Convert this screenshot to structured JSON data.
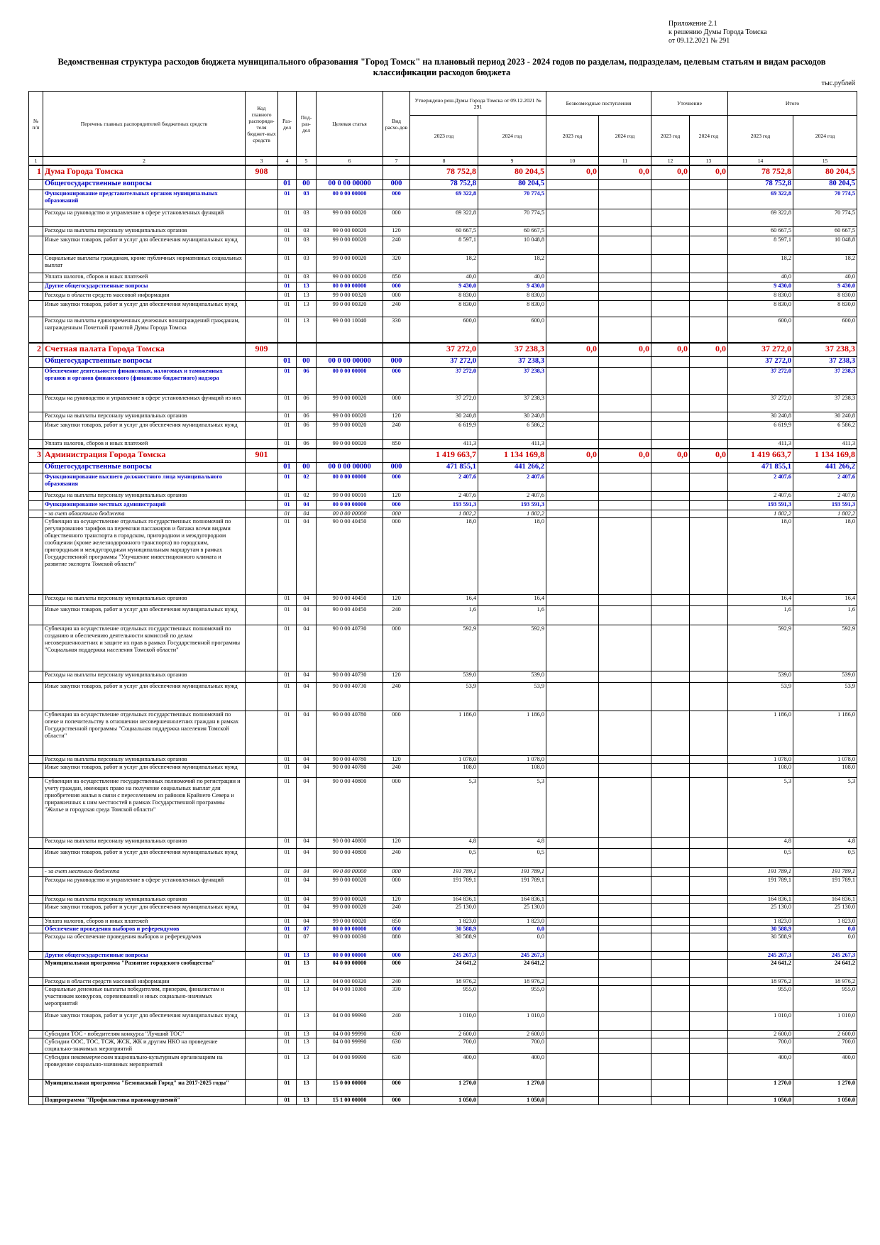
{
  "annex": {
    "line1": "Приложение 2.1",
    "line2": "к решению Думы Города Томска",
    "line3": "от 09.12.2021 № 291"
  },
  "title": "Ведомственная структура расходов бюджета муниципального образования \"Город Томск\" на плановый период 2023 - 2024 годов по разделам, подразделам, целевым статьям и видам расходов классификации расходов бюджета",
  "units": "тыс.рублей",
  "header": {
    "num": "№ п/п",
    "name": "Перечень главных распорядителей бюджетных средств",
    "code": "Код главного распоряди-теля бюджет-ных средств",
    "razdel": "Раз-дел",
    "podrazdel": "Под-раз-дел",
    "csr": "Целевая статья",
    "vr": "Вид расхо-дов",
    "approved": "Утверждено реш.Думы Города Томска от 09.12.2021 № 291",
    "gratuitous": "Безвозмездные поступления",
    "clarification": "Уточнение",
    "total": "Итого",
    "y2023": "2023 год",
    "y2024": "2024 год"
  },
  "colnums": [
    "1",
    "2",
    "3",
    "4",
    "5",
    "6",
    "7",
    "8",
    "9",
    "10",
    "11",
    "12",
    "13",
    "14",
    "15"
  ],
  "rows": [
    {
      "t": "dept",
      "n": "1",
      "name": "Дума Города Томска",
      "code": "908",
      "a23": "78 752,8",
      "a24": "80 204,5",
      "b23": "0,0",
      "b24": "0,0",
      "c23": "0,0",
      "c24": "0,0",
      "s23": "78 752,8",
      "s24": "80 204,5",
      "h": 18
    },
    {
      "t": "sec",
      "name": "Общегосударственные вопросы",
      "rz": "01",
      "pr": "00",
      "csr": "00 0 00 00000",
      "vr": "000",
      "a23": "78 752,8",
      "a24": "80 204,5",
      "s23": "78 752,8",
      "s24": "80 204,5",
      "h": 15
    },
    {
      "t": "sub",
      "name": "Функционирование представительных органов муниципальных образований",
      "rz": "01",
      "pr": "03",
      "csr": "00 0 00 00000",
      "vr": "000",
      "a23": "69 322,8",
      "a24": "70 774,5",
      "s23": "69 322,8",
      "s24": "70 774,5",
      "h": 27
    },
    {
      "t": "norm",
      "name": "Расходы на руководство и управление в сфере установленных функций",
      "rz": "01",
      "pr": "03",
      "csr": "99 0 00 00020",
      "vr": "000",
      "a23": "69 322,8",
      "a24": "70 774,5",
      "s23": "69 322,8",
      "s24": "70 774,5",
      "h": 25
    },
    {
      "t": "norm",
      "name": "Расходы на выплаты персоналу муниципальных органов",
      "rz": "01",
      "pr": "03",
      "csr": "99 0 00 00020",
      "vr": "120",
      "a23": "60 667,5",
      "a24": "60 667,5",
      "s23": "60 667,5",
      "s24": "60 667,5",
      "h": 13
    },
    {
      "t": "norm",
      "name": "Иные закупки товаров, работ и услуг для обеспечения муниципальных нужд",
      "rz": "01",
      "pr": "03",
      "csr": "99 0 00 00020",
      "vr": "240",
      "a23": "8 597,1",
      "a24": "10 048,8",
      "s23": "8 597,1",
      "s24": "10 048,8",
      "h": 26
    },
    {
      "t": "norm",
      "name": "Социальные выплаты гражданам, кроме публичных нормативных социальных выплат",
      "rz": "01",
      "pr": "03",
      "csr": "99 0 00 00020",
      "vr": "320",
      "a23": "18,2",
      "a24": "18,2",
      "s23": "18,2",
      "s24": "18,2",
      "h": 26
    },
    {
      "t": "norm",
      "name": "Уплата налогов, сборов и иных платежей",
      "rz": "01",
      "pr": "03",
      "csr": "99 0 00 00020",
      "vr": "850",
      "a23": "40,0",
      "a24": "40,0",
      "s23": "40,0",
      "s24": "40,0",
      "h": 13
    },
    {
      "t": "sub",
      "name": "Другие общегосударственные вопросы",
      "rz": "01",
      "pr": "13",
      "csr": "00 0 00 00000",
      "vr": "000",
      "a23": "9 430,0",
      "a24": "9 430,0",
      "s23": "9 430,0",
      "s24": "9 430,0",
      "h": 13
    },
    {
      "t": "norm",
      "name": "Расходы в области средств массовой информации",
      "rz": "01",
      "pr": "13",
      "csr": "99 0 00 00320",
      "vr": "000",
      "a23": "8 830,0",
      "a24": "8 830,0",
      "s23": "8 830,0",
      "s24": "8 830,0",
      "h": 13
    },
    {
      "t": "norm",
      "name": "Иные закупки товаров, работ и услуг для обеспечения муниципальных нужд",
      "rz": "01",
      "pr": "13",
      "csr": "99 0 00 00320",
      "vr": "240",
      "a23": "8 830,0",
      "a24": "8 830,0",
      "s23": "8 830,0",
      "s24": "8 830,0",
      "h": 23
    },
    {
      "t": "norm",
      "name": "Расходы на выплаты единовременных денежных вознаграждений гражданам, награжденным Почетной грамотой Думы Города Томска",
      "rz": "01",
      "pr": "13",
      "csr": "99 0 00 10040",
      "vr": "330",
      "a23": "600,0",
      "a24": "600,0",
      "s23": "600,0",
      "s24": "600,0",
      "h": 36
    },
    {
      "t": "dept",
      "n": "2",
      "name": "Счетная палата Города Томска",
      "code": "909",
      "a23": "37 272,0",
      "a24": "37 238,3",
      "b23": "0,0",
      "b24": "0,0",
      "c23": "0,0",
      "c24": "0,0",
      "s23": "37 272,0",
      "s24": "37 238,3",
      "h": 18
    },
    {
      "t": "sec",
      "name": "Общегосударственные вопросы",
      "rz": "01",
      "pr": "00",
      "csr": "00 0 00 00000",
      "vr": "000",
      "a23": "37 272,0",
      "a24": "37 238,3",
      "s23": "37 272,0",
      "s24": "37 238,3",
      "h": 15
    },
    {
      "t": "sub",
      "name": "Обеспечение деятельности финансовых, налоговых и таможенных органов и органов финансового (финансово-бюджетного) надзора",
      "rz": "01",
      "pr": "06",
      "csr": "00 0 00 00000",
      "vr": "000",
      "a23": "37 272,0",
      "a24": "37 238,3",
      "s23": "37 272,0",
      "s24": "37 238,3",
      "h": 38
    },
    {
      "t": "norm",
      "name": "Расходы на руководство и управление в сфере установленных функций из них",
      "rz": "01",
      "pr": "06",
      "csr": "99 0 00 00020",
      "vr": "000",
      "a23": "37 272,0",
      "a24": "37 238,3",
      "s23": "37 272,0",
      "s24": "37 238,3",
      "h": 25
    },
    {
      "t": "norm",
      "name": "Расходы на выплаты персоналу муниципальных органов",
      "rz": "01",
      "pr": "06",
      "csr": "99 0 00 00020",
      "vr": "120",
      "a23": "30 240,8",
      "a24": "30 240,8",
      "s23": "30 240,8",
      "s24": "30 240,8",
      "h": 13
    },
    {
      "t": "norm",
      "name": "Иные закупки товаров, работ и услуг для обеспечения муниципальных нужд",
      "rz": "01",
      "pr": "06",
      "csr": "99 0 00 00020",
      "vr": "240",
      "a23": "6 619,9",
      "a24": "6 586,2",
      "s23": "6 619,9",
      "s24": "6 586,2",
      "h": 26
    },
    {
      "t": "norm",
      "name": "Уплата налогов, сборов и иных платежей",
      "rz": "01",
      "pr": "06",
      "csr": "99 0 00 00020",
      "vr": "850",
      "a23": "411,3",
      "a24": "411,3",
      "s23": "411,3",
      "s24": "411,3",
      "h": 13
    },
    {
      "t": "dept",
      "n": "3",
      "name": "Администрация Города Томска",
      "code": "901",
      "a23": "1 419 663,7",
      "a24": "1 134 169,8",
      "b23": "0,0",
      "b24": "0,0",
      "c23": "0,0",
      "c24": "0,0",
      "s23": "1 419 663,7",
      "s24": "1 134 169,8",
      "h": 18
    },
    {
      "t": "sec",
      "name": "Общегосударственные вопросы",
      "rz": "01",
      "pr": "00",
      "csr": "00 0 00 00000",
      "vr": "000",
      "a23": "471 855,1",
      "a24": "441 266,2",
      "s23": "471 855,1",
      "s24": "441 266,2",
      "h": 15
    },
    {
      "t": "sub",
      "name": "Функционирование высшего должностного лица муниципального образования",
      "rz": "01",
      "pr": "02",
      "csr": "00 0 00 00000",
      "vr": "000",
      "a23": "2 407,6",
      "a24": "2 407,6",
      "s23": "2 407,6",
      "s24": "2 407,6",
      "h": 26
    },
    {
      "t": "norm",
      "name": "Расходы на выплаты персоналу муниципальных органов",
      "rz": "01",
      "pr": "02",
      "csr": "99 0 00 00010",
      "vr": "120",
      "a23": "2 407,6",
      "a24": "2 407,6",
      "s23": "2 407,6",
      "s24": "2 407,6",
      "h": 13
    },
    {
      "t": "sub",
      "name": "Функционирование местных администраций",
      "rz": "01",
      "pr": "04",
      "csr": "00 0 00 00000",
      "vr": "000",
      "a23": "193 591,3",
      "a24": "193 591,3",
      "s23": "193 591,3",
      "s24": "193 591,3",
      "h": 13
    },
    {
      "t": "it",
      "name": "- за счет областного бюджета",
      "rz": "01",
      "pr": "04",
      "csr": "00 0 00 00000",
      "vr": "000",
      "a23": "1 802,2",
      "a24": "1 802,2",
      "s23": "1 802,2",
      "s24": "1 802,2",
      "h": 11
    },
    {
      "t": "norm",
      "name": "Субвенция на осуществление отдельных государственных полномочий по регулированию тарифов на перевозки пассажиров и багажа всеми видами общественного транспорта в городском, пригородном и междугородном сообщении (кроме железнодорожного транспорта) по городским, пригородным и междугородным муниципальным маршрутам в рамках Государственной программы \"Улучшение инвестиционного климата и развитие экспорта Томской области\"",
      "rz": "01",
      "pr": "04",
      "csr": "90 0 00 40450",
      "vr": "000",
      "a23": "18,0",
      "a24": "18,0",
      "s23": "18,0",
      "s24": "18,0",
      "h": 108
    },
    {
      "t": "norm",
      "name": "Расходы на выплаты персоналу муниципальных органов",
      "rz": "01",
      "pr": "04",
      "csr": "90 0 00 40450",
      "vr": "120",
      "a23": "16,4",
      "a24": "16,4",
      "s23": "16,4",
      "s24": "16,4",
      "h": 16
    },
    {
      "t": "norm",
      "name": "Иные закупки товаров, работ и услуг для обеспечения муниципальных нужд",
      "rz": "01",
      "pr": "04",
      "csr": "90 0 00 40450",
      "vr": "240",
      "a23": "1,6",
      "a24": "1,6",
      "s23": "1,6",
      "s24": "1,6",
      "h": 27
    },
    {
      "t": "norm",
      "name": "Субвенция на осуществление отдельных государственных полномочий по созданию и обеспечению деятельности комиссий по делам несовершеннолетних и защите их прав в рамках Государственной программы \"Социальная поддержка населения Томской области\"",
      "rz": "01",
      "pr": "04",
      "csr": "90 0 00 40730",
      "vr": "000",
      "a23": "592,9",
      "a24": "592,9",
      "s23": "592,9",
      "s24": "592,9",
      "h": 65
    },
    {
      "t": "norm",
      "name": "Расходы на выплаты персоналу муниципальных органов",
      "rz": "01",
      "pr": "04",
      "csr": "90 0 00 40730",
      "vr": "120",
      "a23": "539,0",
      "a24": "539,0",
      "s23": "539,0",
      "s24": "539,0",
      "h": 16
    },
    {
      "t": "norm",
      "name": "Иные закупки товаров, работ и услуг для обеспечения муниципальных нужд",
      "rz": "01",
      "pr": "04",
      "csr": "90 0 00 40730",
      "vr": "240",
      "a23": "53,9",
      "a24": "53,9",
      "s23": "53,9",
      "s24": "53,9",
      "h": 40
    },
    {
      "t": "norm",
      "name": "Субвенция на осуществление отдельных государственных полномочий по опеке и попечительству в отношении несовершеннолетних граждан в рамках Государственной программы \"Социальная поддержка населения Томской области\"",
      "rz": "01",
      "pr": "04",
      "csr": "90 0 00 40780",
      "vr": "000",
      "a23": "1 186,0",
      "a24": "1 186,0",
      "s23": "1 186,0",
      "s24": "1 186,0",
      "h": 63
    },
    {
      "t": "norm",
      "name": "Расходы на выплаты персоналу муниципальных органов",
      "rz": "01",
      "pr": "04",
      "csr": "90 0 00 40780",
      "vr": "120",
      "a23": "1 078,0",
      "a24": "1 078,0",
      "s23": "1 078,0",
      "s24": "1 078,0",
      "h": 11
    },
    {
      "t": "norm",
      "name": "Иные закупки товаров, работ и услуг для обеспечения муниципальных нужд",
      "rz": "01",
      "pr": "04",
      "csr": "90 0 00 40780",
      "vr": "240",
      "a23": "108,0",
      "a24": "108,0",
      "s23": "108,0",
      "s24": "108,0",
      "h": 20
    },
    {
      "t": "norm",
      "name": "Субвенция на осуществление государственных полномочий по регистрации и учету граждан, имеющих право на получение социальных выплат для приобретения жилья в связи с переселением из районов Крайнего Севера и приравненных к ним местностей в рамках Государственной программы \"Жилье и городская среда Томской области\"",
      "rz": "01",
      "pr": "04",
      "csr": "90 0 00 40800",
      "vr": "000",
      "a23": "5,3",
      "a24": "5,3",
      "s23": "5,3",
      "s24": "5,3",
      "h": 84
    },
    {
      "t": "norm",
      "name": "Расходы на выплаты персоналу муниципальных органов",
      "rz": "01",
      "pr": "04",
      "csr": "90 0 00 40800",
      "vr": "120",
      "a23": "4,8",
      "a24": "4,8",
      "s23": "4,8",
      "s24": "4,8",
      "h": 16
    },
    {
      "t": "norm",
      "name": "Иные закупки товаров, работ и услуг для обеспечения муниципальных нужд",
      "rz": "01",
      "pr": "04",
      "csr": "90 0 00 40800",
      "vr": "240",
      "a23": "0,5",
      "a24": "0,5",
      "s23": "0,5",
      "s24": "0,5",
      "h": 27
    },
    {
      "t": "it",
      "name": "- за счет местного бюджета",
      "rz": "01",
      "pr": "04",
      "csr": "99 0 00 00000",
      "vr": "000",
      "a23": "191 789,1",
      "a24": "191 789,1",
      "s23": "191 789,1",
      "s24": "191 789,1",
      "h": 12
    },
    {
      "t": "norm",
      "name": "Расходы на руководство и управление в сфере установленных функций",
      "rz": "01",
      "pr": "04",
      "csr": "99 0 00 00020",
      "vr": "000",
      "a23": "191 789,1",
      "a24": "191 789,1",
      "s23": "191 789,1",
      "s24": "191 789,1",
      "h": 27
    },
    {
      "t": "norm",
      "name": "Расходы на выплаты персоналу муниципальных органов",
      "rz": "01",
      "pr": "04",
      "csr": "99 0 00 00020",
      "vr": "120",
      "a23": "164 836,1",
      "a24": "164 836,1",
      "s23": "164 836,1",
      "s24": "164 836,1",
      "h": 11
    },
    {
      "t": "norm",
      "name": "Иные закупки товаров, работ и услуг для обеспечения муниципальных нужд",
      "rz": "01",
      "pr": "04",
      "csr": "99 0 00 00020",
      "vr": "240",
      "a23": "25 130,0",
      "a24": "25 130,0",
      "s23": "25 130,0",
      "s24": "25 130,0",
      "h": 20
    },
    {
      "t": "norm",
      "name": "Уплата налогов, сборов и иных платежей",
      "rz": "01",
      "pr": "04",
      "csr": "99 0 00 00020",
      "vr": "850",
      "a23": "1 823,0",
      "a24": "1 823,0",
      "s23": "1 823,0",
      "s24": "1 823,0",
      "h": 11
    },
    {
      "t": "sub",
      "name": "Обеспечение проведения выборов и референдумов",
      "rz": "01",
      "pr": "07",
      "csr": "00 0 00 00000",
      "vr": "000",
      "a23": "30 588,9",
      "a24": "0,0",
      "s23": "30 588,9",
      "s24": "0,0",
      "h": 11
    },
    {
      "t": "norm",
      "name": "Расходы на обеспечение проведения выборов и референдумов",
      "rz": "01",
      "pr": "07",
      "csr": "99 0 00 00030",
      "vr": "880",
      "a23": "30 588,9",
      "a24": "0,0",
      "s23": "30 588,9",
      "s24": "0,0",
      "h": 26
    },
    {
      "t": "sub",
      "name": "Другие общегосударственные вопросы",
      "rz": "01",
      "pr": "13",
      "csr": "00 0 00 00000",
      "vr": "000",
      "a23": "245 267,3",
      "a24": "245 267,3",
      "s23": "245 267,3",
      "s24": "245 267,3",
      "h": 11
    },
    {
      "t": "prog",
      "name": "Муниципальная программа \"Развитие городского сообщества\"",
      "rz": "01",
      "pr": "13",
      "csr": "04 0 00 00000",
      "vr": "000",
      "a23": "24 641,2",
      "a24": "24 641,2",
      "s23": "24 641,2",
      "s24": "24 641,2",
      "h": 26
    },
    {
      "t": "norm",
      "name": "Расходы в области средств массовой информации",
      "rz": "01",
      "pr": "13",
      "csr": "04 0 00 00320",
      "vr": "240",
      "a23": "18 976,2",
      "a24": "18 976,2",
      "s23": "18 976,2",
      "s24": "18 976,2",
      "h": 11
    },
    {
      "t": "norm",
      "name": "Социальные денежные выплаты победителям, призерам, финалистам и участникам конкурсов, соревнований и иных социально-значимых мероприятий",
      "rz": "01",
      "pr": "13",
      "csr": "04 0 00 10360",
      "vr": "330",
      "a23": "955,0",
      "a24": "955,0",
      "s23": "955,0",
      "s24": "955,0",
      "h": 37
    },
    {
      "t": "norm",
      "name": "Иные закупки товаров, работ и услуг для обеспечения муниципальных нужд",
      "rz": "01",
      "pr": "13",
      "csr": "04 0 00 99990",
      "vr": "240",
      "a23": "1 010,0",
      "a24": "1 010,0",
      "s23": "1 010,0",
      "s24": "1 010,0",
      "h": 26
    },
    {
      "t": "norm",
      "name": "Субсидии ТОС - победителям конкурса \"Лучший ТОС\"",
      "rz": "01",
      "pr": "13",
      "csr": "04 0 00 99990",
      "vr": "630",
      "a23": "2 600,0",
      "a24": "2 600,0",
      "s23": "2 600,0",
      "s24": "2 600,0",
      "h": 11
    },
    {
      "t": "norm",
      "name": "Субсидии ООС, ТОС, ТСЖ, ЖСК, ЖК и другим НКО на проведение социально-значимых мероприятий",
      "rz": "01",
      "pr": "13",
      "csr": "04 0 00 99990",
      "vr": "630",
      "a23": "700,0",
      "a24": "700,0",
      "s23": "700,0",
      "s24": "700,0",
      "h": 22
    },
    {
      "t": "norm",
      "name": "Субсидии некоммерческим национально-культурным организациям на проведение социально-значимых мероприятий",
      "rz": "01",
      "pr": "13",
      "csr": "04 0 00 99990",
      "vr": "630",
      "a23": "400,0",
      "a24": "400,0",
      "s23": "400,0",
      "s24": "400,0",
      "h": 36
    },
    {
      "t": "prog",
      "name": "Муниципальная программа \"Безопасный Город\" на 2017-2025 годы\"",
      "rz": "01",
      "pr": "13",
      "csr": "15 0 00 00000",
      "vr": "000",
      "a23": "1 270,0",
      "a24": "1 270,0",
      "s23": "1 270,0",
      "s24": "1 270,0",
      "h": 24
    },
    {
      "t": "prog",
      "name": "Подпрограмма \"Профилактика правонарушений\"",
      "rz": "01",
      "pr": "13",
      "csr": "15 1 00 00000",
      "vr": "000",
      "a23": "1 050,0",
      "a24": "1 050,0",
      "s23": "1 050,0",
      "s24": "1 050,0",
      "h": 12
    }
  ]
}
